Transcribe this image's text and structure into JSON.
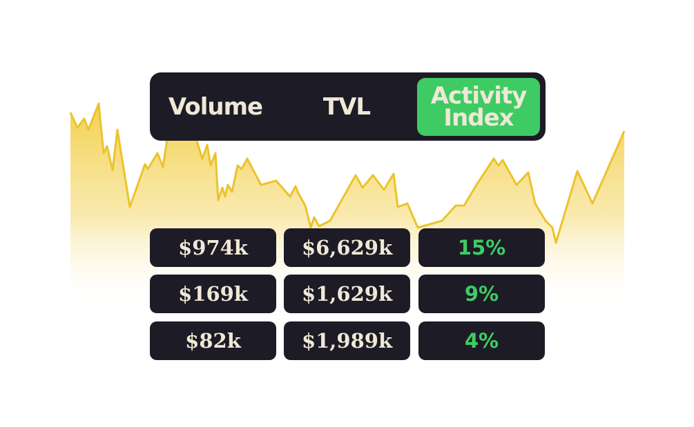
{
  "tabs": {
    "items": [
      "Volume",
      "TVL",
      "Activity Index"
    ],
    "active": 2
  },
  "table": {
    "rows": [
      [
        "$974k",
        "$6,629k",
        "15%"
      ],
      [
        "$169k",
        "$1,629k",
        "9%"
      ],
      [
        "$82k",
        "$1,989k",
        "4%"
      ]
    ]
  }
}
